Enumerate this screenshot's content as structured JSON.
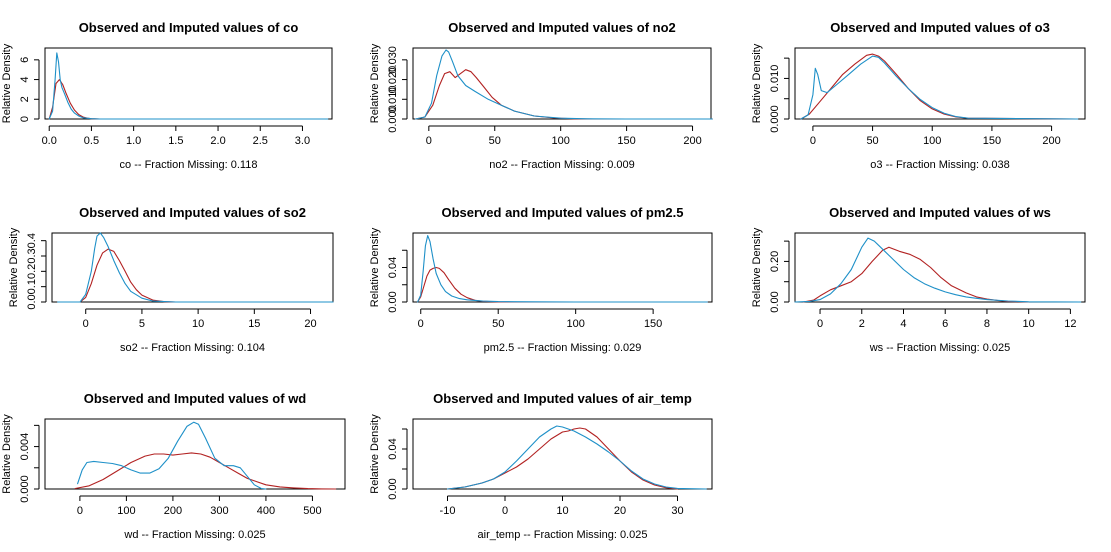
{
  "figure": {
    "ylabel": "Relative Density",
    "colors": {
      "imputed": "#b22222",
      "observed": "#1e90c8",
      "axis": "#000000"
    }
  },
  "chart_data": [
    {
      "type": "line",
      "title": "Observed and Imputed values of co",
      "xlabel": "co  --  Fraction Missing: 0.118",
      "ylabel": "Relative Density",
      "xlim": [
        -0.05,
        3.35
      ],
      "ylim": [
        0,
        7.2
      ],
      "xticks": [
        0,
        0.5,
        1,
        1.5,
        2,
        2.5,
        3
      ],
      "xticklabels": [
        "0.0",
        "0.5",
        "1.0",
        "1.5",
        "2.0",
        "2.5",
        "3.0"
      ],
      "yticks": [
        0,
        2,
        4,
        6
      ],
      "yticklabels": [
        "0",
        "2",
        "4",
        "6"
      ],
      "series": [
        {
          "color": "#b22222",
          "x": [
            0,
            0.04,
            0.08,
            0.12,
            0.16,
            0.2,
            0.25,
            0.3,
            0.35,
            0.4,
            0.45,
            0.5,
            0.6,
            0.8,
            1.0
          ],
          "y": [
            0,
            1.2,
            3.6,
            4.0,
            3.5,
            2.6,
            1.6,
            0.9,
            0.45,
            0.2,
            0.08,
            0.03,
            0,
            0,
            0
          ]
        },
        {
          "color": "#1e90c8",
          "x": [
            0,
            0.04,
            0.07,
            0.09,
            0.11,
            0.13,
            0.15,
            0.18,
            0.22,
            0.26,
            0.3,
            0.35,
            0.4,
            0.5,
            0.6,
            1.0,
            2.0,
            3.3
          ],
          "y": [
            0,
            0.8,
            4.0,
            6.7,
            5.8,
            4.0,
            3.2,
            2.6,
            1.7,
            1.0,
            0.6,
            0.3,
            0.12,
            0.03,
            0,
            0,
            0,
            0
          ]
        }
      ]
    },
    {
      "type": "line",
      "title": "Observed and Imputed values of no2",
      "xlabel": "no2  --  Fraction Missing: 0.009",
      "ylabel": "Relative Density",
      "xlim": [
        -12,
        214
      ],
      "ylim": [
        0,
        0.036
      ],
      "xticks": [
        0,
        50,
        100,
        150,
        200
      ],
      "xticklabels": [
        "0",
        "50",
        "100",
        "150",
        "200"
      ],
      "yticks": [
        0,
        0.01,
        0.02,
        0.03
      ],
      "yticklabels": [
        "0.000",
        "0.010",
        "0.020",
        "0.030"
      ],
      "series": [
        {
          "color": "#b22222",
          "x": [
            -10,
            -3,
            3,
            8,
            12,
            16,
            20,
            24,
            28,
            32,
            36,
            42,
            48,
            55,
            65,
            80,
            95,
            110,
            125,
            215
          ],
          "y": [
            0,
            0.001,
            0.007,
            0.017,
            0.023,
            0.024,
            0.021,
            0.023,
            0.025,
            0.024,
            0.021,
            0.016,
            0.011,
            0.007,
            0.004,
            0.0015,
            0.0005,
            0.0001,
            0,
            0
          ]
        },
        {
          "color": "#1e90c8",
          "x": [
            -10,
            -3,
            2,
            6,
            10,
            13,
            15,
            18,
            22,
            28,
            35,
            45,
            55,
            65,
            80,
            100,
            120,
            150,
            215
          ],
          "y": [
            0,
            0.001,
            0.008,
            0.022,
            0.032,
            0.035,
            0.034,
            0.029,
            0.022,
            0.017,
            0.014,
            0.01,
            0.007,
            0.004,
            0.0015,
            0.0004,
            0.0001,
            0,
            0
          ]
        }
      ]
    },
    {
      "type": "line",
      "title": "Observed and Imputed values of o3",
      "xlabel": "o3  --  Fraction Missing: 0.038",
      "ylabel": "Relative Density",
      "xlim": [
        -15,
        228
      ],
      "ylim": [
        0,
        0.0175
      ],
      "xticks": [
        0,
        50,
        100,
        150,
        200
      ],
      "xticklabels": [
        "0",
        "50",
        "100",
        "150",
        "200"
      ],
      "yticks": [
        0,
        0.005,
        0.01,
        0.015
      ],
      "yticklabels": [
        "0.000",
        "",
        "0.010",
        ""
      ],
      "series": [
        {
          "color": "#b22222",
          "x": [
            -10,
            -3,
            5,
            15,
            25,
            35,
            45,
            50,
            55,
            60,
            70,
            80,
            90,
            100,
            110,
            120,
            130,
            220
          ],
          "y": [
            0,
            0.0012,
            0.004,
            0.0075,
            0.011,
            0.0135,
            0.0157,
            0.016,
            0.0155,
            0.0143,
            0.011,
            0.0075,
            0.0045,
            0.0025,
            0.0012,
            0.0005,
            0.0002,
            0
          ]
        },
        {
          "color": "#1e90c8",
          "x": [
            -10,
            -4,
            0,
            2,
            4,
            7,
            12,
            20,
            30,
            40,
            50,
            55,
            60,
            70,
            80,
            90,
            100,
            110,
            120,
            130,
            222
          ],
          "y": [
            0,
            0.001,
            0.006,
            0.0125,
            0.011,
            0.007,
            0.0065,
            0.0085,
            0.011,
            0.0135,
            0.0155,
            0.0152,
            0.0138,
            0.0105,
            0.0075,
            0.0048,
            0.0028,
            0.0014,
            0.0006,
            0.0002,
            0
          ]
        }
      ]
    },
    {
      "type": "line",
      "title": "Observed and Imputed values of so2",
      "xlabel": "so2  --  Fraction Missing: 0.104",
      "ylabel": "Relative Density",
      "xlim": [
        -3,
        22
      ],
      "ylim": [
        0,
        0.45
      ],
      "xticks": [
        0,
        5,
        10,
        15,
        20
      ],
      "xticklabels": [
        "0",
        "5",
        "10",
        "15",
        "20"
      ],
      "yticks": [
        0,
        0.1,
        0.2,
        0.3,
        0.4
      ],
      "yticklabels": [
        "0.0",
        "0.1",
        "0.2",
        "0.3",
        "0.4"
      ],
      "series": [
        {
          "color": "#b22222",
          "x": [
            -0.5,
            0,
            0.5,
            1.0,
            1.5,
            2.0,
            2.5,
            3.0,
            3.5,
            4.0,
            4.5,
            5.0,
            6.0,
            7.0,
            8.0
          ],
          "y": [
            0,
            0.03,
            0.12,
            0.24,
            0.32,
            0.345,
            0.33,
            0.27,
            0.2,
            0.13,
            0.08,
            0.045,
            0.012,
            0.002,
            0
          ]
        },
        {
          "color": "#1e90c8",
          "x": [
            -2.5,
            -0.5,
            0,
            0.5,
            0.8,
            1.0,
            1.3,
            1.6,
            2.0,
            2.5,
            3.0,
            3.5,
            4.0,
            5.0,
            6.0,
            8.0,
            12.0,
            22.0
          ],
          "y": [
            0,
            0,
            0.05,
            0.2,
            0.35,
            0.43,
            0.45,
            0.42,
            0.36,
            0.27,
            0.19,
            0.12,
            0.07,
            0.025,
            0.006,
            0,
            0,
            0
          ]
        }
      ]
    },
    {
      "type": "line",
      "title": "Observed and Imputed values of pm2.5",
      "xlabel": "pm2.5  --  Fraction Missing: 0.029",
      "ylabel": "Relative Density",
      "xlim": [
        -5,
        188
      ],
      "ylim": [
        0,
        0.08
      ],
      "xticks": [
        0,
        50,
        100,
        150
      ],
      "xticklabels": [
        "0",
        "50",
        "100",
        "150"
      ],
      "yticks": [
        0,
        0.02,
        0.04,
        0.06
      ],
      "yticklabels": [
        "0.00",
        "",
        "0.04",
        ""
      ],
      "series": [
        {
          "color": "#b22222",
          "x": [
            -2,
            0,
            2,
            4,
            6,
            8,
            10,
            12,
            15,
            18,
            22,
            26,
            30,
            35,
            40,
            50,
            60,
            185
          ],
          "y": [
            0,
            0.006,
            0.018,
            0.03,
            0.037,
            0.039,
            0.04,
            0.039,
            0.034,
            0.026,
            0.016,
            0.009,
            0.005,
            0.002,
            0.0008,
            0.0001,
            0,
            0
          ]
        },
        {
          "color": "#1e90c8",
          "x": [
            -2,
            0,
            1.5,
            3,
            4.5,
            6,
            8,
            10,
            13,
            16,
            20,
            25,
            30,
            40,
            50,
            70,
            100,
            185
          ],
          "y": [
            0,
            0.008,
            0.035,
            0.065,
            0.077,
            0.07,
            0.05,
            0.033,
            0.02,
            0.012,
            0.007,
            0.004,
            0.0025,
            0.001,
            0.0005,
            0.0002,
            0,
            0
          ]
        }
      ]
    },
    {
      "type": "line",
      "title": "Observed and Imputed values of ws",
      "xlabel": "ws  --  Fraction Missing: 0.025",
      "ylabel": "Relative Density",
      "xlim": [
        -1.2,
        12.7
      ],
      "ylim": [
        0,
        0.34
      ],
      "xticks": [
        0,
        2,
        4,
        6,
        8,
        10,
        12
      ],
      "xticklabels": [
        "0",
        "2",
        "4",
        "6",
        "8",
        "10",
        "12"
      ],
      "yticks": [
        0,
        0.1,
        0.2,
        0.3
      ],
      "yticklabels": [
        "0.00",
        "",
        "0.20",
        ""
      ],
      "series": [
        {
          "color": "#b22222",
          "x": [
            -0.8,
            -0.3,
            0,
            0.5,
            1.0,
            1.5,
            2.0,
            2.5,
            3.0,
            3.3,
            3.8,
            4.3,
            4.8,
            5.3,
            5.8,
            6.3,
            7.0,
            7.5,
            8.0,
            8.5,
            9.0,
            10.0
          ],
          "y": [
            0,
            0.01,
            0.03,
            0.06,
            0.08,
            0.1,
            0.14,
            0.2,
            0.255,
            0.27,
            0.25,
            0.235,
            0.21,
            0.17,
            0.12,
            0.08,
            0.045,
            0.025,
            0.015,
            0.008,
            0.003,
            0
          ]
        },
        {
          "color": "#1e90c8",
          "x": [
            -1.2,
            -0.5,
            0,
            0.5,
            1.0,
            1.5,
            2.0,
            2.3,
            2.6,
            3.0,
            3.5,
            4.0,
            4.5,
            5.0,
            5.5,
            6.0,
            6.5,
            7.0,
            7.5,
            8.0,
            9.0,
            10.0,
            12.5
          ],
          "y": [
            0,
            0.003,
            0.012,
            0.04,
            0.09,
            0.16,
            0.27,
            0.315,
            0.3,
            0.26,
            0.21,
            0.16,
            0.12,
            0.09,
            0.068,
            0.05,
            0.036,
            0.025,
            0.018,
            0.012,
            0.005,
            0.001,
            0
          ]
        }
      ]
    },
    {
      "type": "line",
      "title": "Observed and Imputed values of wd",
      "xlabel": "wd  --  Fraction Missing: 0.025",
      "ylabel": "Relative Density",
      "xlim": [
        -75,
        570
      ],
      "ylim": [
        0,
        0.0066
      ],
      "xticks": [
        0,
        100,
        200,
        300,
        400,
        500
      ],
      "xticklabels": [
        "0",
        "100",
        "200",
        "300",
        "400",
        "500"
      ],
      "yticks": [
        0,
        0.002,
        0.004,
        0.006
      ],
      "yticklabels": [
        "0.000",
        "",
        "0.004",
        ""
      ],
      "series": [
        {
          "color": "#b22222",
          "x": [
            -10,
            20,
            50,
            80,
            110,
            140,
            160,
            180,
            200,
            220,
            240,
            260,
            280,
            300,
            320,
            340,
            360,
            380,
            400,
            430,
            460,
            490,
            520,
            550
          ],
          "y": [
            5e-05,
            0.0003,
            0.0009,
            0.0017,
            0.0025,
            0.0031,
            0.0033,
            0.0033,
            0.0032,
            0.0033,
            0.0034,
            0.0033,
            0.003,
            0.0025,
            0.002,
            0.0015,
            0.001,
            0.0007,
            0.0004,
            0.0002,
            0.0001,
            4e-05,
            1e-05,
            0
          ]
        },
        {
          "color": "#1e90c8",
          "x": [
            -5,
            5,
            15,
            30,
            50,
            70,
            90,
            110,
            130,
            150,
            170,
            190,
            210,
            230,
            245,
            255,
            270,
            290,
            310,
            330,
            345,
            360,
            375,
            390,
            400
          ],
          "y": [
            0.0005,
            0.0018,
            0.0025,
            0.0026,
            0.0025,
            0.0024,
            0.0022,
            0.0018,
            0.0015,
            0.0015,
            0.0019,
            0.0029,
            0.0045,
            0.0059,
            0.0063,
            0.0061,
            0.0048,
            0.0029,
            0.0022,
            0.0022,
            0.002,
            0.0012,
            0.0004,
            5e-05,
            0
          ]
        }
      ]
    },
    {
      "type": "line",
      "title": "Observed and Imputed values of air_temp",
      "xlabel": "air_temp  --  Fraction Missing: 0.025",
      "ylabel": "Relative Density",
      "xlim": [
        -16,
        36
      ],
      "ylim": [
        0,
        0.07
      ],
      "xticks": [
        -10,
        0,
        10,
        20,
        30
      ],
      "xticklabels": [
        "-10",
        "0",
        "10",
        "20",
        "30"
      ],
      "yticks": [
        0,
        0.02,
        0.04,
        0.06
      ],
      "yticklabels": [
        "0.00",
        "",
        "0.04",
        ""
      ],
      "series": [
        {
          "color": "#b22222",
          "x": [
            -10,
            -7,
            -4,
            -2,
            0,
            2,
            4,
            6,
            8,
            10,
            11,
            12,
            13,
            14,
            16,
            18,
            20,
            22,
            24,
            26,
            28,
            30
          ],
          "y": [
            0,
            0.002,
            0.006,
            0.01,
            0.016,
            0.022,
            0.03,
            0.04,
            0.05,
            0.057,
            0.058,
            0.06,
            0.061,
            0.06,
            0.052,
            0.04,
            0.028,
            0.017,
            0.009,
            0.004,
            0.0013,
            0
          ]
        },
        {
          "color": "#1e90c8",
          "x": [
            -10,
            -7,
            -4,
            -2,
            0,
            2,
            4,
            6,
            8,
            9,
            10,
            12,
            14,
            16,
            18,
            20,
            22,
            24,
            26,
            28,
            30,
            35
          ],
          "y": [
            0,
            0.002,
            0.006,
            0.01,
            0.017,
            0.028,
            0.04,
            0.052,
            0.06,
            0.063,
            0.062,
            0.058,
            0.052,
            0.045,
            0.037,
            0.028,
            0.018,
            0.01,
            0.005,
            0.002,
            0.0006,
            0
          ]
        }
      ]
    }
  ]
}
